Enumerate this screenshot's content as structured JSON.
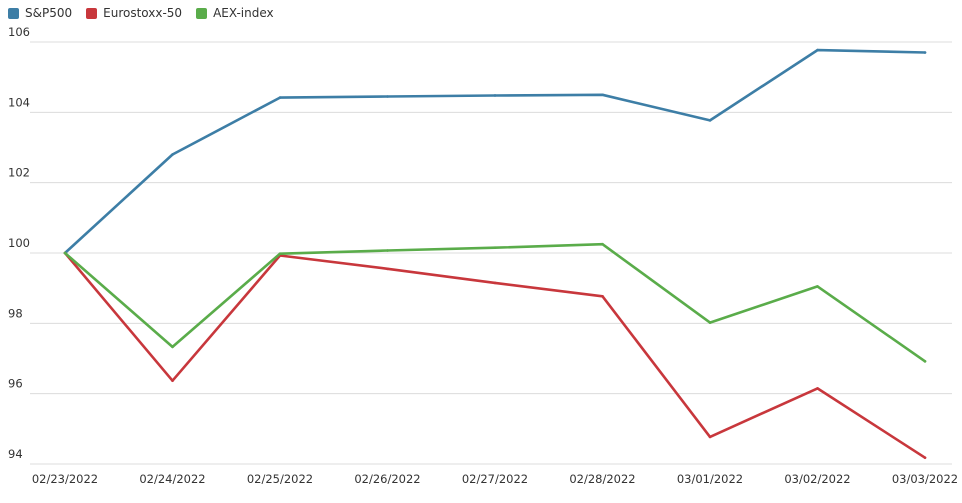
{
  "chart_data": {
    "type": "line",
    "categories": [
      "02/23/2022",
      "02/24/2022",
      "02/25/2022",
      "02/26/2022",
      "02/27/2022",
      "02/28/2022",
      "03/01/2022",
      "03/02/2022",
      "03/03/2022"
    ],
    "series": [
      {
        "name": "S&P500",
        "color": "#3d7ea6",
        "values": [
          100,
          102.8,
          104.42,
          104.45,
          104.48,
          104.5,
          103.77,
          105.77,
          105.7
        ]
      },
      {
        "name": "Eurostoxx-50",
        "color": "#c8373c",
        "values": [
          100,
          96.37,
          99.93,
          99.55,
          99.15,
          98.77,
          94.77,
          96.15,
          94.18
        ]
      },
      {
        "name": "AEX-index",
        "color": "#5aac4a",
        "values": [
          100,
          97.33,
          99.98,
          100.07,
          100.15,
          100.25,
          98.02,
          99.05,
          96.92
        ]
      }
    ],
    "ylim": [
      94,
      106
    ],
    "yticks": [
      "94",
      "96",
      "98",
      "100",
      "102",
      "104",
      "106"
    ],
    "grid": true,
    "legend_position": "top-left"
  }
}
